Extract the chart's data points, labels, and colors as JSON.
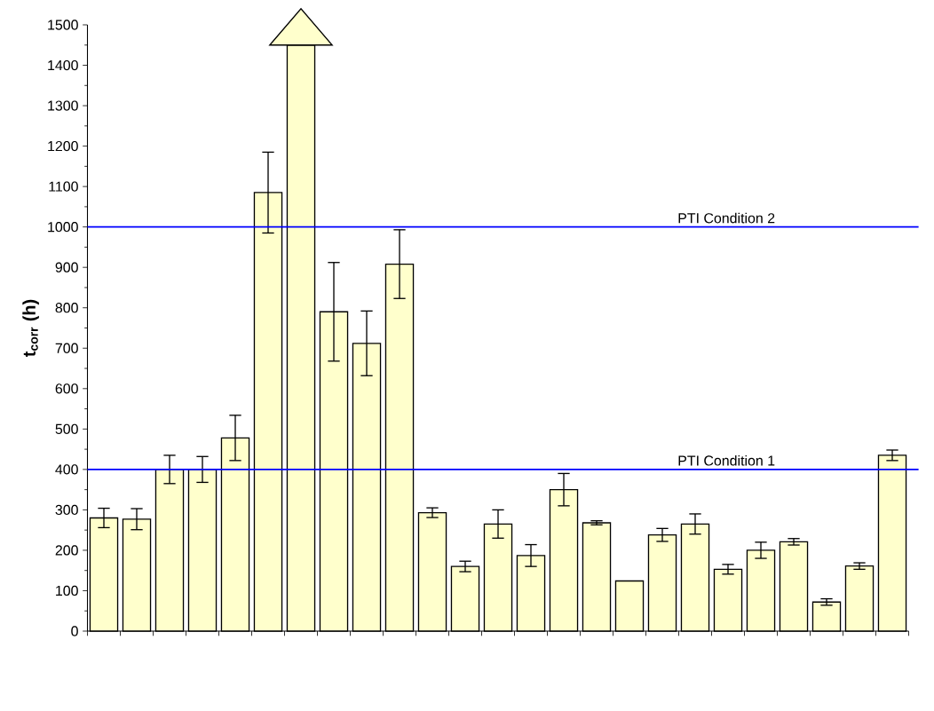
{
  "chart_data": {
    "type": "bar",
    "ylabel": "t$_{corr}$ (h)",
    "categories": [
      null,
      null,
      null,
      null,
      null,
      null,
      null,
      null,
      null,
      null,
      null,
      null,
      null,
      null,
      null,
      null,
      null,
      null,
      null,
      null,
      null,
      null,
      null,
      null,
      null
    ],
    "values": [
      280,
      277,
      400,
      400,
      478,
      1085,
      1450,
      790,
      712,
      908,
      293,
      160,
      265,
      187,
      350,
      268,
      124,
      238,
      265,
      153,
      200,
      221,
      72,
      161,
      435
    ],
    "errors": [
      24,
      26,
      35,
      32,
      56,
      100,
      null,
      122,
      80,
      85,
      12,
      13,
      35,
      27,
      40,
      5,
      null,
      16,
      25,
      12,
      20,
      8,
      8,
      8,
      13
    ],
    "color": "#ffffcc",
    "ylim": [
      0,
      1500
    ],
    "yticks": [
      0,
      100,
      200,
      300,
      400,
      500,
      600,
      700,
      800,
      900,
      1000,
      1100,
      1200,
      1300,
      1400,
      1500
    ],
    "ref_lines": [
      {
        "axis": "y",
        "value": 400,
        "label": "PTI Condition 1",
        "color": "#0000ff"
      },
      {
        "axis": "y",
        "value": 1000,
        "label": "PTI Condition 2",
        "color": "#0000ff"
      }
    ],
    "tick_labels": "y",
    "grid": false
  }
}
